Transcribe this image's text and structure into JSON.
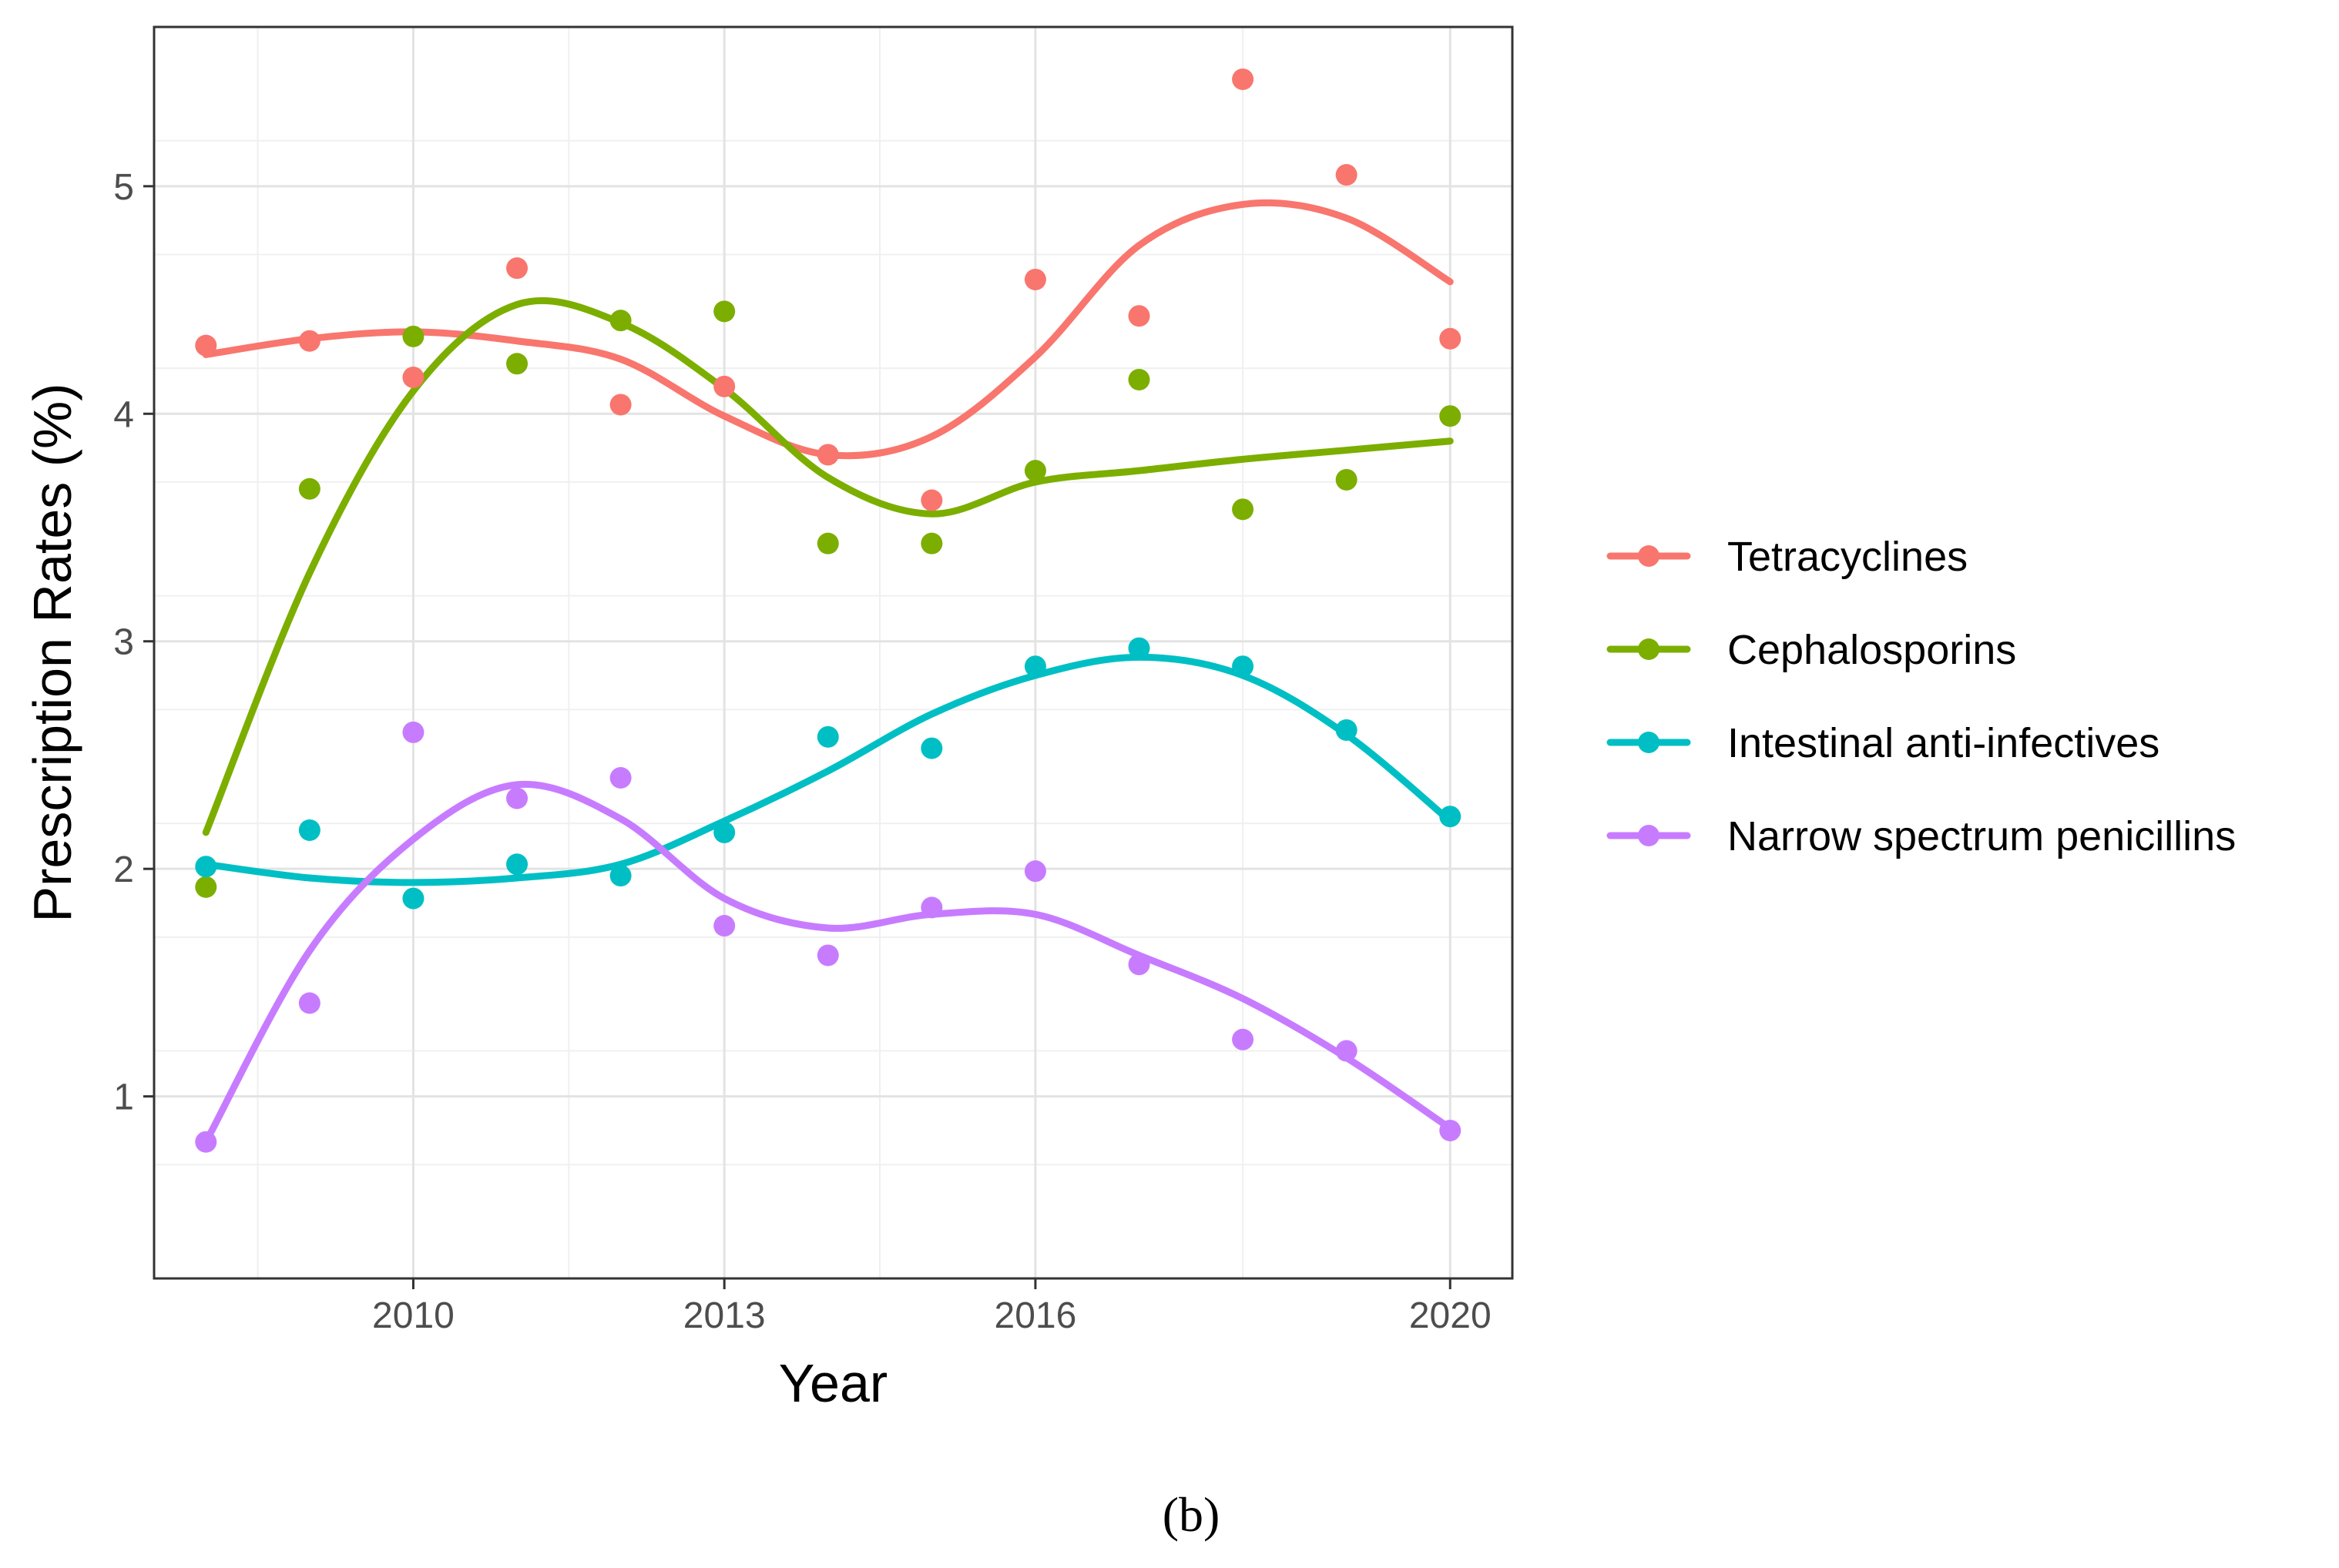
{
  "chart_data": {
    "type": "line",
    "xlabel": "Year",
    "ylabel": "Prescription Rates (%)",
    "xlim": [
      2007.5,
      2020.6
    ],
    "ylim": [
      0.2,
      5.7
    ],
    "xticks": [
      "2010",
      "2013",
      "2016",
      "2020"
    ],
    "yticks": [
      "1",
      "2",
      "3",
      "4",
      "5"
    ],
    "grid": true,
    "legend_position": "right",
    "caption": "(b)",
    "x": [
      2008,
      2009,
      2010,
      2011,
      2012,
      2013,
      2014,
      2015,
      2016,
      2017,
      2018,
      2019,
      2020
    ],
    "series": [
      {
        "name": "Tetracyclines",
        "color": "#f8766d",
        "values": [
          4.3,
          4.32,
          4.16,
          4.64,
          4.04,
          4.12,
          3.82,
          3.62,
          4.59,
          4.43,
          5.47,
          5.05,
          4.33
        ],
        "smooth": [
          4.26,
          4.33,
          4.36,
          4.32,
          4.24,
          3.99,
          3.82,
          3.9,
          4.25,
          4.74,
          4.92,
          4.86,
          4.58
        ]
      },
      {
        "name": "Cephalosporins",
        "color": "#7cae00",
        "values": [
          1.92,
          3.67,
          4.34,
          4.22,
          4.41,
          4.45,
          3.43,
          3.43,
          3.75,
          4.15,
          3.58,
          3.71,
          3.99
        ],
        "smooth": [
          2.16,
          3.3,
          4.1,
          4.48,
          4.4,
          4.11,
          3.72,
          3.56,
          3.7,
          3.75,
          3.8,
          3.84,
          3.88
        ]
      },
      {
        "name": "Intestinal anti-infectives",
        "color": "#00bfc4",
        "values": [
          2.01,
          2.17,
          1.87,
          2.02,
          1.97,
          2.16,
          2.58,
          2.53,
          2.89,
          2.97,
          2.89,
          2.61,
          2.23
        ],
        "smooth": [
          2.02,
          1.96,
          1.94,
          1.96,
          2.02,
          2.21,
          2.43,
          2.68,
          2.85,
          2.93,
          2.85,
          2.59,
          2.21
        ]
      },
      {
        "name": "Narrow spectrum penicillins",
        "color": "#c77cff",
        "values": [
          0.8,
          1.41,
          2.6,
          2.31,
          2.4,
          1.75,
          1.62,
          1.83,
          1.99,
          1.58,
          1.25,
          1.2,
          0.85
        ],
        "smooth": [
          0.8,
          1.64,
          2.13,
          2.37,
          2.22,
          1.87,
          1.74,
          1.8,
          1.8,
          1.62,
          1.43,
          1.17,
          0.86
        ]
      }
    ]
  }
}
